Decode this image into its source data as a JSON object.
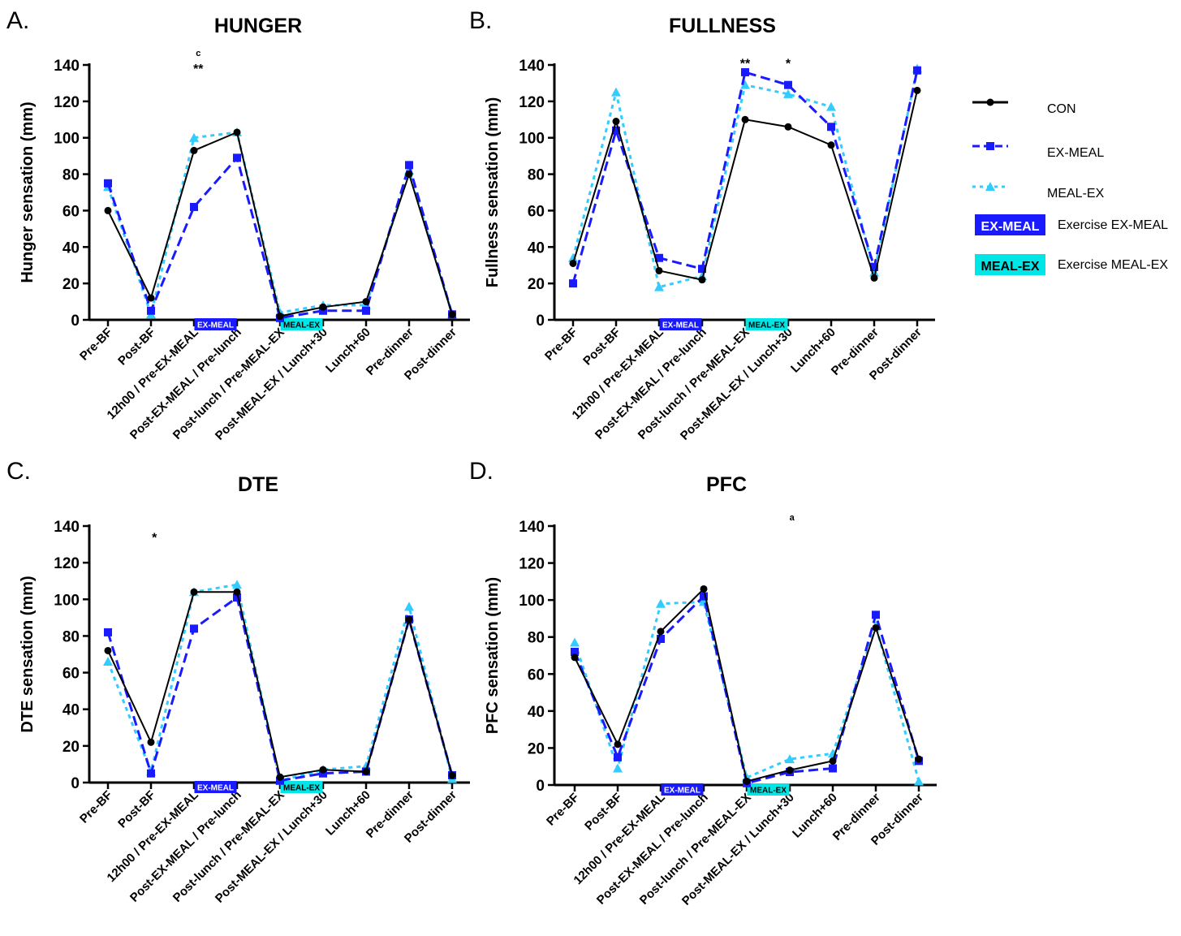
{
  "legend": {
    "items": [
      {
        "label": "CON",
        "kind": "line",
        "series": 0
      },
      {
        "label": "EX-MEAL",
        "kind": "line",
        "series": 1
      },
      {
        "label": "MEAL-EX",
        "kind": "line",
        "series": 2
      },
      {
        "label": "Exercise EX-MEAL",
        "kind": "box",
        "box_text": "EX-MEAL",
        "color": "#1a1aff",
        "text_color": "#ffffff"
      },
      {
        "label": "Exercise MEAL-EX",
        "kind": "box",
        "box_text": "MEAL-EX",
        "color": "#00e5e5",
        "text_color": "#000000"
      }
    ]
  },
  "series_styles": [
    {
      "name": "CON",
      "color": "#000000",
      "marker": "circle",
      "dash": "none"
    },
    {
      "name": "EX-MEAL",
      "color": "#1a1aff",
      "marker": "square",
      "dash": "12 6"
    },
    {
      "name": "MEAL-EX",
      "color": "#33ccff",
      "marker": "triangle",
      "dash": "5 5"
    }
  ],
  "chart_data": [
    {
      "type": "line",
      "letter": "A.",
      "title": "HUNGER",
      "ylabel": "Hunger sensation (mm)",
      "ylim": [
        0,
        140
      ],
      "yticks": [
        0,
        20,
        40,
        60,
        80,
        100,
        120,
        140
      ],
      "categories": [
        "Pre-BF",
        "Post-BF",
        "12h00 / Pre-EX-MEAL",
        "Post-EX-MEAL / Pre-lunch",
        "Post-lunch / Pre-MEAL-EX",
        "Post-MEAL-EX / Lunch+30",
        "Lunch+60",
        "Pre-dinner",
        "Post-dinner"
      ],
      "series": [
        {
          "name": "CON",
          "values": [
            60,
            12,
            93,
            103,
            2,
            7,
            10,
            80,
            3
          ]
        },
        {
          "name": "EX-MEAL",
          "values": [
            75,
            5,
            62,
            89,
            1,
            5,
            5,
            85,
            3
          ]
        },
        {
          "name": "MEAL-EX",
          "values": [
            73,
            3,
            100,
            103,
            4,
            8,
            8,
            82,
            3
          ]
        }
      ],
      "exercise_boxes": [
        {
          "text": "EX-MEAL",
          "between": [
            2,
            3
          ],
          "color": "#1a1aff",
          "text_color": "#ffffff"
        },
        {
          "text": "MEAL-EX",
          "between": [
            4,
            5
          ],
          "color": "#00e5e5",
          "text_color": "#000000"
        }
      ],
      "annotations": [
        {
          "text": "**",
          "x": 2.1,
          "y": 139
        },
        {
          "text": "c",
          "x": 2.1,
          "y": 145,
          "small": true
        }
      ]
    },
    {
      "type": "line",
      "letter": "B.",
      "title": "FULLNESS",
      "ylabel": "Fullness sensation (mm)",
      "ylim": [
        0,
        140
      ],
      "yticks": [
        0,
        20,
        40,
        60,
        80,
        100,
        120,
        140
      ],
      "categories": [
        "Pre-BF",
        "Post-BF",
        "12h00 / Pre-EX-MEAL",
        "Post-EX-MEAL / Pre-lunch",
        "Post-lunch / Pre-MEAL-EX",
        "Post-MEAL-EX / Lunch+30",
        "Lunch+60",
        "Pre-dinner",
        "Post-dinner"
      ],
      "series": [
        {
          "name": "CON",
          "values": [
            31,
            109,
            27,
            22,
            110,
            106,
            96,
            23,
            126
          ]
        },
        {
          "name": "EX-MEAL",
          "values": [
            20,
            104,
            34,
            28,
            136,
            129,
            106,
            29,
            137
          ]
        },
        {
          "name": "MEAL-EX",
          "values": [
            34,
            125,
            18,
            24,
            129,
            124,
            117,
            26,
            138
          ]
        }
      ],
      "exercise_boxes": [
        {
          "text": "EX-MEAL",
          "between": [
            2,
            3
          ],
          "color": "#1a1aff",
          "text_color": "#ffffff"
        },
        {
          "text": "MEAL-EX",
          "between": [
            4,
            5
          ],
          "color": "#00e5e5",
          "text_color": "#000000"
        }
      ],
      "annotations": [
        {
          "text": "**",
          "x": 4.0,
          "y": 142
        },
        {
          "text": "*",
          "x": 5.0,
          "y": 142
        }
      ]
    },
    {
      "type": "line",
      "letter": "C.",
      "title": "DTE",
      "ylabel": "DTE sensation (mm)",
      "ylim": [
        0,
        140
      ],
      "yticks": [
        0,
        20,
        40,
        60,
        80,
        100,
        120,
        140
      ],
      "categories": [
        "Pre-BF",
        "Post-BF",
        "12h00 / Pre-EX-MEAL",
        "Post-EX-MEAL / Pre-lunch",
        "Post-lunch / Pre-MEAL-EX",
        "Post-MEAL-EX / Lunch+30",
        "Lunch+60",
        "Pre-dinner",
        "Post-dinner"
      ],
      "series": [
        {
          "name": "CON",
          "values": [
            72,
            22,
            104,
            104,
            3,
            7,
            6,
            89,
            4
          ]
        },
        {
          "name": "EX-MEAL",
          "values": [
            82,
            5,
            84,
            101,
            1,
            5,
            6,
            89,
            4
          ]
        },
        {
          "name": "MEAL-EX",
          "values": [
            66,
            6,
            104,
            108,
            1,
            7,
            9,
            96,
            2
          ]
        }
      ],
      "exercise_boxes": [
        {
          "text": "EX-MEAL",
          "between": [
            2,
            3
          ],
          "color": "#1a1aff",
          "text_color": "#ffffff"
        },
        {
          "text": "MEAL-EX",
          "between": [
            4,
            5
          ],
          "color": "#00e5e5",
          "text_color": "#000000"
        }
      ],
      "annotations": [
        {
          "text": "*",
          "x": 1.08,
          "y": 135
        }
      ]
    },
    {
      "type": "line",
      "letter": "D.",
      "title": "PFC",
      "ylabel": "PFC sensation (mm)",
      "ylim": [
        0,
        140
      ],
      "yticks": [
        0,
        20,
        40,
        60,
        80,
        100,
        120,
        140
      ],
      "categories": [
        "Pre-BF",
        "Post-BF",
        "12h00 / Pre-EX-MEAL",
        "Post-EX-MEAL / Pre-lunch",
        "Post-lunch / Pre-MEAL-EX",
        "Post-MEAL-EX / Lunch+30",
        "Lunch+60",
        "Pre-dinner",
        "Post-dinner"
      ],
      "series": [
        {
          "name": "CON",
          "values": [
            69,
            22,
            83,
            106,
            2,
            8,
            13,
            85,
            14
          ]
        },
        {
          "name": "EX-MEAL",
          "values": [
            72,
            15,
            79,
            102,
            1,
            7,
            9,
            92,
            13
          ]
        },
        {
          "name": "MEAL-EX",
          "values": [
            77,
            9,
            98,
            99,
            4,
            14,
            17,
            86,
            2
          ]
        }
      ],
      "exercise_boxes": [
        {
          "text": "EX-MEAL",
          "between": [
            2,
            3
          ],
          "color": "#1a1aff",
          "text_color": "#ffffff"
        },
        {
          "text": "MEAL-EX",
          "between": [
            4,
            5
          ],
          "color": "#00e5e5",
          "text_color": "#000000"
        }
      ],
      "annotations": [
        {
          "text": "a",
          "x": 5.05,
          "y": 143,
          "small": true
        }
      ]
    }
  ]
}
